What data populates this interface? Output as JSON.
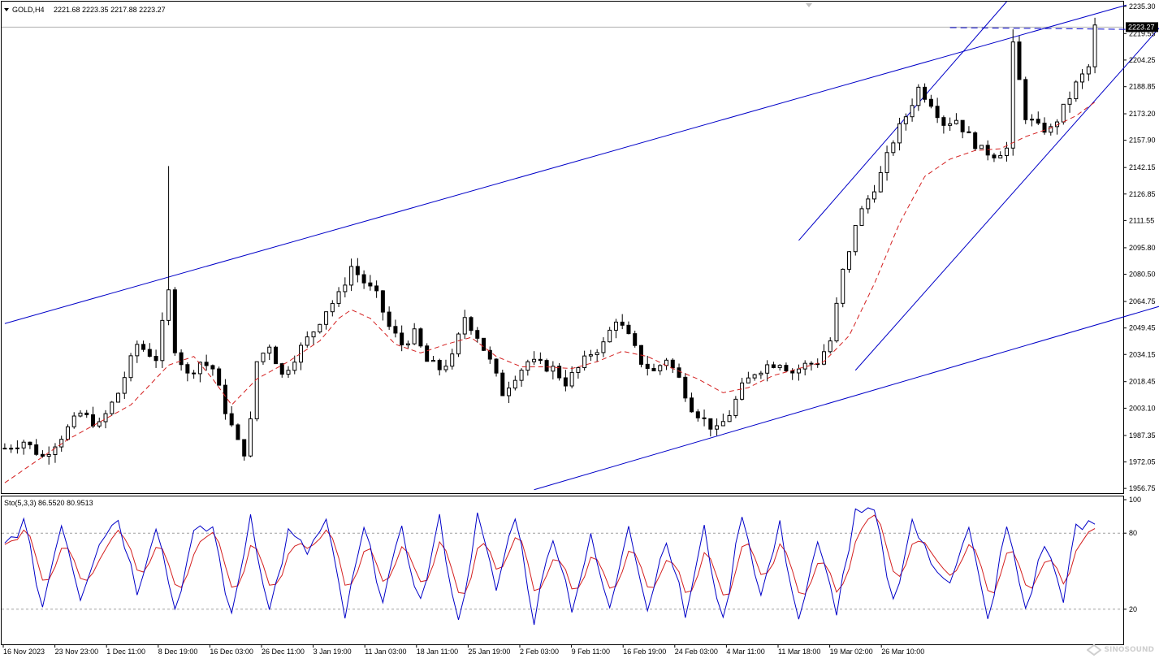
{
  "header": {
    "symbol": "GOLD,H4",
    "ohlc": "2221.68 2223.35 2217.88 2223.27"
  },
  "indicator": {
    "label": "Sto(5,3,3) 86.5520 80.9513",
    "levels": [
      "100",
      "80",
      "20"
    ]
  },
  "watermark": "SINOSOUND",
  "colors": {
    "background": "#ffffff",
    "candle": "#000000",
    "ma": "#d42020",
    "trendline": "#0000c8",
    "stoch_main": "#0000c8",
    "stoch_signal": "#d42020",
    "grid_level": "#a0a0a0"
  },
  "chart_data": [
    {
      "type": "candlestick",
      "title": "GOLD,H4",
      "last_price": "2223.27",
      "y_ticks": [
        "2235.30",
        "2219.55",
        "2204.25",
        "2188.85",
        "2173.20",
        "2157.90",
        "2142.15",
        "2126.85",
        "2111.55",
        "2095.80",
        "2080.50",
        "2064.75",
        "2049.45",
        "2034.15",
        "2018.45",
        "2003.10",
        "1987.35",
        "1972.05",
        "1956.75"
      ],
      "ylim": [
        1954,
        2238
      ],
      "x_labels": [
        "16 Nov 2023",
        "23 Nov 23:00",
        "1 Dec 11:00",
        "8 Dec 19:00",
        "16 Dec 03:00",
        "26 Dec 11:00",
        "3 Jan 19:00",
        "11 Jan 03:00",
        "18 Jan 11:00",
        "25 Jan 19:00",
        "2 Feb 03:00",
        "9 Feb 11:00",
        "16 Feb 19:00",
        "24 Feb 03:00",
        "4 Mar 11:00",
        "11 Mar 18:00",
        "19 Mar 02:00",
        "26 Mar 10:00"
      ],
      "close_path": [
        [
          0,
          1980
        ],
        [
          3,
          1984
        ],
        [
          6,
          1975
        ],
        [
          9,
          1987
        ],
        [
          12,
          2000
        ],
        [
          15,
          1993
        ],
        [
          18,
          2012
        ],
        [
          21,
          2040
        ],
        [
          24,
          2032
        ],
        [
          26,
          2070
        ],
        [
          27,
          2038
        ],
        [
          29,
          2022
        ],
        [
          31,
          2030
        ],
        [
          33,
          2026
        ],
        [
          35,
          2002
        ],
        [
          37,
          1983
        ],
        [
          38,
          1978
        ],
        [
          39,
          1995
        ],
        [
          40,
          2030
        ],
        [
          42,
          2040
        ],
        [
          44,
          2022
        ],
        [
          47,
          2038
        ],
        [
          49,
          2048
        ],
        [
          51,
          2060
        ],
        [
          53,
          2068
        ],
        [
          55,
          2085
        ],
        [
          57,
          2076
        ],
        [
          59,
          2068
        ],
        [
          61,
          2050
        ],
        [
          63,
          2040
        ],
        [
          65,
          2046
        ],
        [
          67,
          2030
        ],
        [
          69,
          2026
        ],
        [
          71,
          2032
        ],
        [
          73,
          2056
        ],
        [
          75,
          2045
        ],
        [
          77,
          2030
        ],
        [
          79,
          2012
        ],
        [
          81,
          2022
        ],
        [
          83,
          2030
        ],
        [
          85,
          2028
        ],
        [
          87,
          2026
        ],
        [
          89,
          2018
        ],
        [
          91,
          2026
        ],
        [
          93,
          2035
        ],
        [
          95,
          2040
        ],
        [
          97,
          2055
        ],
        [
          99,
          2044
        ],
        [
          101,
          2030
        ],
        [
          103,
          2024
        ],
        [
          105,
          2032
        ],
        [
          107,
          2020
        ],
        [
          109,
          2004
        ],
        [
          111,
          1996
        ],
        [
          113,
          1990
        ],
        [
          115,
          2000
        ],
        [
          117,
          2015
        ],
        [
          119,
          2024
        ],
        [
          121,
          2028
        ],
        [
          123,
          2030
        ],
        [
          125,
          2024
        ],
        [
          127,
          2028
        ],
        [
          129,
          2030
        ],
        [
          131,
          2042
        ],
        [
          133,
          2082
        ],
        [
          134,
          2092
        ],
        [
          135,
          2110
        ],
        [
          137,
          2124
        ],
        [
          139,
          2138
        ],
        [
          141,
          2158
        ],
        [
          143,
          2172
        ],
        [
          145,
          2188
        ],
        [
          147,
          2180
        ],
        [
          149,
          2168
        ],
        [
          151,
          2170
        ],
        [
          153,
          2160
        ],
        [
          155,
          2152
        ],
        [
          157,
          2150
        ],
        [
          159,
          2153
        ],
        [
          160,
          2212
        ],
        [
          161,
          2192
        ],
        [
          162,
          2172
        ],
        [
          164,
          2165
        ],
        [
          166,
          2164
        ],
        [
          168,
          2176
        ],
        [
          170,
          2190
        ],
        [
          172,
          2200
        ],
        [
          173,
          2223
        ]
      ],
      "ma_path": [
        [
          0,
          1960
        ],
        [
          10,
          1985
        ],
        [
          20,
          2005
        ],
        [
          26,
          2028
        ],
        [
          30,
          2033
        ],
        [
          33,
          2020
        ],
        [
          36,
          2005
        ],
        [
          40,
          2020
        ],
        [
          45,
          2030
        ],
        [
          50,
          2042
        ],
        [
          53,
          2055
        ],
        [
          55,
          2060
        ],
        [
          58,
          2055
        ],
        [
          62,
          2040
        ],
        [
          66,
          2035
        ],
        [
          70,
          2040
        ],
        [
          74,
          2044
        ],
        [
          78,
          2033
        ],
        [
          82,
          2027
        ],
        [
          86,
          2027
        ],
        [
          90,
          2026
        ],
        [
          94,
          2030
        ],
        [
          98,
          2036
        ],
        [
          102,
          2033
        ],
        [
          106,
          2026
        ],
        [
          110,
          2020
        ],
        [
          114,
          2012
        ],
        [
          118,
          2015
        ],
        [
          122,
          2022
        ],
        [
          126,
          2026
        ],
        [
          130,
          2030
        ],
        [
          134,
          2045
        ],
        [
          138,
          2075
        ],
        [
          142,
          2110
        ],
        [
          146,
          2137
        ],
        [
          150,
          2147
        ],
        [
          154,
          2152
        ],
        [
          158,
          2153
        ],
        [
          162,
          2160
        ],
        [
          166,
          2165
        ],
        [
          170,
          2172
        ],
        [
          173,
          2180
        ]
      ],
      "trendlines": [
        {
          "name": "outer-channel-top",
          "from": [
            0,
            2052
          ],
          "to": [
            178,
            2236
          ]
        },
        {
          "name": "outer-channel-bottom",
          "from": [
            84,
            1956
          ],
          "to": [
            217,
            2098
          ]
        },
        {
          "name": "inner-channel-left",
          "from": [
            126,
            2100
          ],
          "to": [
            159,
            2238
          ]
        },
        {
          "name": "inner-channel-right",
          "from": [
            135,
            2025
          ],
          "to": [
            184,
            2226
          ]
        },
        {
          "name": "resistance-2223",
          "from": [
            150,
            2223
          ],
          "to": [
            178,
            2222
          ],
          "dashed": true
        }
      ]
    },
    {
      "type": "line",
      "title": "Sto(5,3,3)",
      "ylim": [
        0,
        100
      ],
      "levels": [
        100,
        80,
        20
      ],
      "series": [
        {
          "name": "86.5520",
          "role": "main"
        },
        {
          "name": "80.9513",
          "role": "signal"
        }
      ],
      "main_path": [
        [
          0,
          70
        ],
        [
          3,
          88
        ],
        [
          6,
          22
        ],
        [
          9,
          90
        ],
        [
          12,
          30
        ],
        [
          15,
          75
        ],
        [
          18,
          92
        ],
        [
          21,
          35
        ],
        [
          24,
          88
        ],
        [
          27,
          20
        ],
        [
          30,
          78
        ],
        [
          33,
          85
        ],
        [
          36,
          12
        ],
        [
          39,
          95
        ],
        [
          42,
          18
        ],
        [
          45,
          80
        ],
        [
          48,
          65
        ],
        [
          51,
          88
        ],
        [
          54,
          14
        ],
        [
          57,
          82
        ],
        [
          60,
          30
        ],
        [
          63,
          80
        ],
        [
          66,
          25
        ],
        [
          69,
          90
        ],
        [
          72,
          8
        ],
        [
          75,
          92
        ],
        [
          78,
          35
        ],
        [
          81,
          96
        ],
        [
          84,
          12
        ],
        [
          87,
          80
        ],
        [
          90,
          22
        ],
        [
          93,
          75
        ],
        [
          96,
          18
        ],
        [
          99,
          90
        ],
        [
          102,
          20
        ],
        [
          105,
          78
        ],
        [
          108,
          15
        ],
        [
          111,
          82
        ],
        [
          114,
          8
        ],
        [
          117,
          98
        ],
        [
          120,
          30
        ],
        [
          123,
          85
        ],
        [
          126,
          12
        ],
        [
          129,
          70
        ],
        [
          132,
          20
        ],
        [
          135,
          94
        ],
        [
          138,
          96
        ],
        [
          141,
          25
        ],
        [
          144,
          90
        ],
        [
          147,
          55
        ],
        [
          150,
          45
        ],
        [
          153,
          82
        ],
        [
          156,
          10
        ],
        [
          159,
          85
        ],
        [
          162,
          20
        ],
        [
          165,
          72
        ],
        [
          168,
          30
        ],
        [
          170,
          82
        ],
        [
          173,
          88
        ]
      ]
    }
  ]
}
